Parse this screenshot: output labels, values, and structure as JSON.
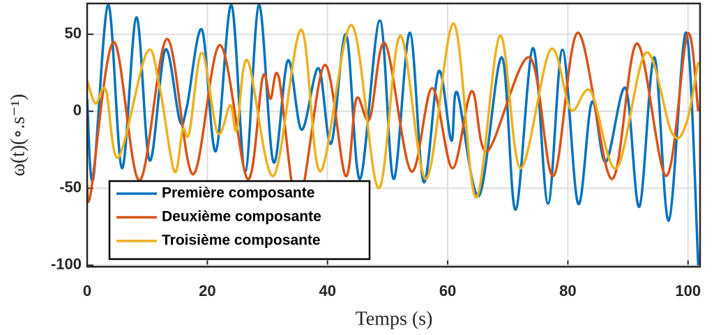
{
  "chart_data": {
    "type": "line",
    "xlabel": "Temps (s)",
    "ylabel": "ω(t)(∘.s⁻¹)",
    "xlim": [
      0,
      102
    ],
    "ylim": [
      -101,
      70
    ],
    "xticks": [
      0,
      20,
      40,
      60,
      80,
      100
    ],
    "yticks": [
      -100,
      -50,
      0,
      50
    ],
    "grid": true,
    "legend": "lower left",
    "series": [
      {
        "name": "Première composante",
        "color": "#0072bd",
        "x": [
          0,
          1,
          3.5,
          5.8,
          8.2,
          10.4,
          13,
          15.4,
          16.6,
          19.1,
          21.4,
          24,
          26.3,
          28.6,
          31,
          33.4,
          35.7,
          38.5,
          40.6,
          43.1,
          45.4,
          48.7,
          51,
          53.7,
          56,
          58.5,
          60.6,
          61.6,
          65.2,
          69,
          71.3,
          74.2,
          76.7,
          79.1,
          81.7,
          84,
          86.3,
          89.6,
          91.9,
          94.4,
          96.8,
          99.7,
          101.7
        ],
        "values": [
          8,
          -44,
          69,
          -37,
          61,
          -32,
          40,
          -6,
          3,
          53,
          -26,
          69,
          -39,
          69,
          -33,
          33,
          -12,
          28,
          -21,
          50,
          -44,
          59,
          -44,
          51,
          -46,
          26,
          -19,
          12,
          -55,
          35,
          -64,
          41,
          -60,
          40,
          -60,
          6,
          -33,
          15,
          -62,
          35,
          -71,
          51,
          -100
        ]
      },
      {
        "name": "Deuxième composante",
        "color": "#d95319",
        "x": [
          0,
          0.6,
          4.4,
          8.7,
          13.3,
          17.6,
          22.1,
          26.7,
          29.2,
          30.5,
          31.9,
          35.1,
          39.5,
          43,
          44.8,
          47,
          49.6,
          53.9,
          57.4,
          60.8,
          64,
          66.6,
          73.6,
          77.6,
          81.7,
          87.3,
          91.5,
          96.4,
          99.9,
          101.7
        ],
        "values": [
          -48,
          -53,
          45,
          -45,
          47,
          -41,
          43,
          -44,
          22,
          8,
          22,
          -60,
          30,
          -42,
          8,
          -5,
          44,
          -39,
          15,
          -37,
          13,
          -26,
          35,
          -42,
          51,
          -44,
          44,
          -42,
          50,
          0
        ]
      },
      {
        "name": "Troisième composante",
        "color": "#edb120",
        "x": [
          0,
          1.4,
          3.1,
          5.2,
          9.9,
          12,
          14.5,
          15.9,
          17,
          19.1,
          21.7,
          23.8,
          24.9,
          26.7,
          31,
          35.6,
          38.8,
          44,
          48.5,
          52.1,
          56.4,
          61,
          64.7,
          68.7,
          72.1,
          77.1,
          80.5,
          83.8,
          88.1,
          93,
          97.3,
          99.7,
          101.7
        ],
        "values": [
          20,
          5,
          14,
          -30,
          38,
          17,
          -39,
          -12,
          -14,
          38,
          -14,
          4,
          -12,
          33,
          -42,
          53,
          -39,
          56,
          -50,
          49,
          -44,
          57,
          -56,
          49,
          -37,
          40,
          1,
          13,
          -37,
          38,
          -14,
          -8,
          32
        ]
      }
    ]
  }
}
